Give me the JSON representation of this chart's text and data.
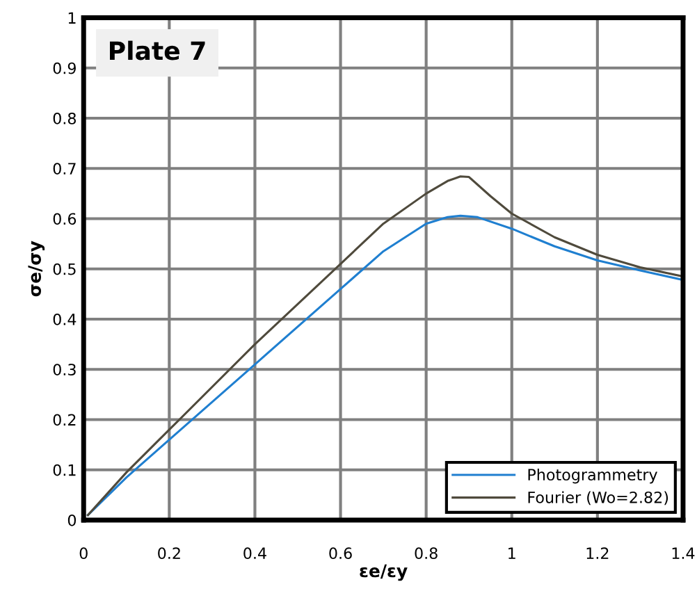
{
  "chart_data": {
    "type": "line",
    "xlabel": "εe/εy",
    "ylabel": "σe/σy",
    "annotations": [
      "Plate 7"
    ],
    "xlim": [
      0,
      1.4
    ],
    "xticks": [
      0,
      0.2,
      0.4,
      0.6,
      0.8,
      1,
      1.2,
      1.4
    ],
    "ylim": [
      0,
      1
    ],
    "yticks": [
      0,
      0.1,
      0.2,
      0.3,
      0.4,
      0.5,
      0.6,
      0.7,
      0.8,
      0.9,
      1
    ],
    "grid": true,
    "legend": "bottom right",
    "marker": "none",
    "line_style": "solid",
    "series": [
      {
        "name": "Photogrammetry",
        "color": "#1f7fd0",
        "x": [
          0.01,
          0.1,
          0.2,
          0.4,
          0.6,
          0.7,
          0.8,
          0.85,
          0.88,
          0.92,
          1.0,
          1.1,
          1.2,
          1.3,
          1.4
        ],
        "values": [
          0.01,
          0.085,
          0.16,
          0.31,
          0.46,
          0.535,
          0.59,
          0.603,
          0.606,
          0.603,
          0.58,
          0.545,
          0.517,
          0.497,
          0.478
        ]
      },
      {
        "name": "Fourier (Wo=2.82)",
        "color": "#4f4a3c",
        "x": [
          0.01,
          0.1,
          0.2,
          0.4,
          0.6,
          0.7,
          0.8,
          0.85,
          0.88,
          0.9,
          0.95,
          1.0,
          1.1,
          1.2,
          1.3,
          1.4
        ],
        "values": [
          0.01,
          0.095,
          0.18,
          0.35,
          0.51,
          0.59,
          0.65,
          0.675,
          0.684,
          0.683,
          0.645,
          0.61,
          0.563,
          0.528,
          0.503,
          0.485
        ]
      }
    ]
  }
}
